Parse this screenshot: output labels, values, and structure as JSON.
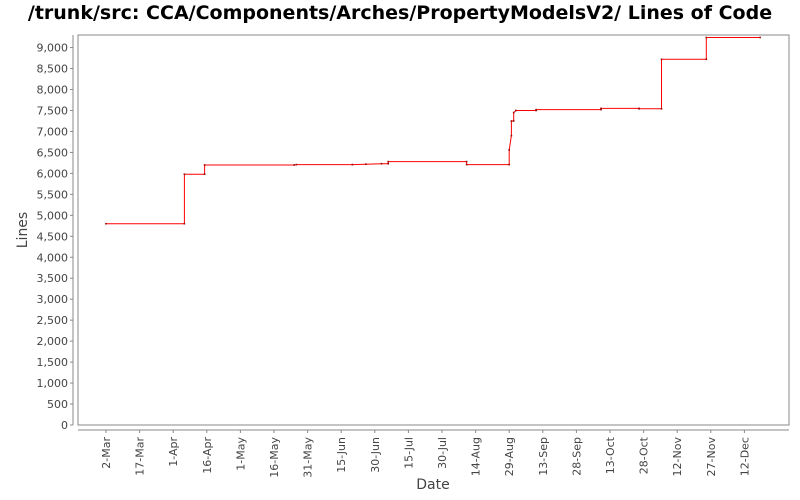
{
  "chart_data": {
    "type": "line",
    "title": "/trunk/src: CCA/Components/Arches/PropertyModelsV2/ Lines of Code",
    "xlabel": "Date",
    "ylabel": "Lines",
    "ylim": [
      0,
      9300
    ],
    "y_ticks": [
      0,
      500,
      1000,
      1500,
      2000,
      2500,
      3000,
      3500,
      4000,
      4500,
      5000,
      5500,
      6000,
      6500,
      7000,
      7500,
      8000,
      8500,
      9000
    ],
    "y_tick_labels": [
      "0",
      "500",
      "1,000",
      "1,500",
      "2,000",
      "2,500",
      "3,000",
      "3,500",
      "4,000",
      "4,500",
      "5,000",
      "5,500",
      "6,000",
      "6,500",
      "7,000",
      "7,500",
      "8,000",
      "8,500",
      "9,000"
    ],
    "x_ticks": [
      "2-Mar",
      "17-Mar",
      "1-Apr",
      "16-Apr",
      "1-May",
      "16-May",
      "31-May",
      "15-Jun",
      "30-Jun",
      "15-Jul",
      "30-Jul",
      "14-Aug",
      "29-Aug",
      "13-Sep",
      "28-Sep",
      "13-Oct",
      "28-Oct",
      "12-Nov",
      "27-Nov",
      "12-Dec"
    ],
    "grid": false,
    "legend": "none",
    "line_color": "#ff0000",
    "series": [
      {
        "values": [
          {
            "x": "2-Mar",
            "y": 4800
          },
          {
            "x": "6-Apr",
            "y": 4800
          },
          {
            "x": "6-Apr",
            "y": 5980
          },
          {
            "x": "15-Apr",
            "y": 5980
          },
          {
            "x": "15-Apr",
            "y": 6200
          },
          {
            "x": "25-May",
            "y": 6200
          },
          {
            "x": "26-May",
            "y": 6210
          },
          {
            "x": "20-Jun",
            "y": 6210
          },
          {
            "x": "26-Jun",
            "y": 6220
          },
          {
            "x": "3-Jul",
            "y": 6230
          },
          {
            "x": "6-Jul",
            "y": 6230
          },
          {
            "x": "6-Jul",
            "y": 6280
          },
          {
            "x": "10-Aug",
            "y": 6280
          },
          {
            "x": "10-Aug",
            "y": 6210
          },
          {
            "x": "29-Aug",
            "y": 6210
          },
          {
            "x": "29-Aug",
            "y": 6560
          },
          {
            "x": "30-Aug",
            "y": 6900
          },
          {
            "x": "30-Aug",
            "y": 7250
          },
          {
            "x": "31-Aug",
            "y": 7250
          },
          {
            "x": "31-Aug",
            "y": 7450
          },
          {
            "x": "1-Sep",
            "y": 7500
          },
          {
            "x": "10-Sep",
            "y": 7500
          },
          {
            "x": "10-Sep",
            "y": 7520
          },
          {
            "x": "9-Oct",
            "y": 7520
          },
          {
            "x": "9-Oct",
            "y": 7550
          },
          {
            "x": "26-Oct",
            "y": 7550
          },
          {
            "x": "26-Oct",
            "y": 7540
          },
          {
            "x": "5-Nov",
            "y": 7540
          },
          {
            "x": "5-Nov",
            "y": 8720
          },
          {
            "x": "25-Nov",
            "y": 8720
          },
          {
            "x": "25-Nov",
            "y": 9240
          },
          {
            "x": "19-Dec",
            "y": 9240
          }
        ]
      }
    ]
  }
}
